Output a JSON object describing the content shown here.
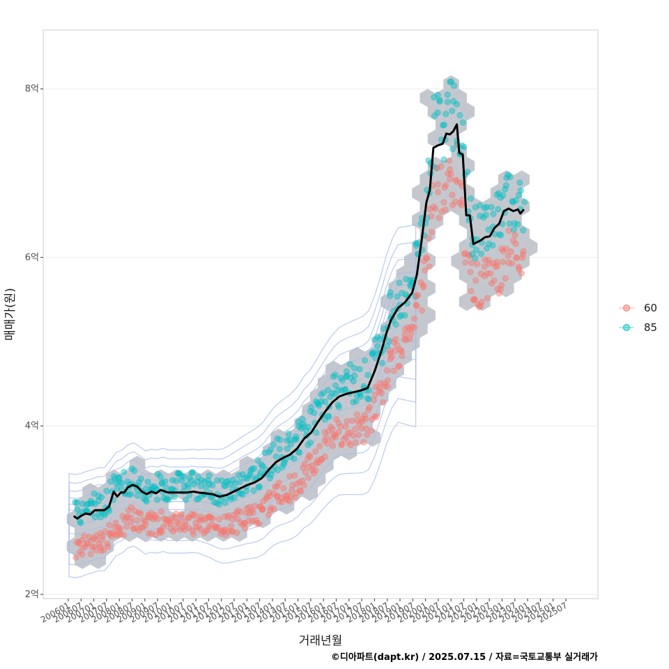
{
  "chart_data": {
    "type": "scatter",
    "xlabel": "거래년월",
    "ylabel": "매매가(원)",
    "caption": "©디아파트(dapt.kr) / 2025.07.15 / 자료=국토교통부 실거래가",
    "x_ticks": [
      "200601",
      "200607",
      "200701",
      "200707",
      "200801",
      "200807",
      "200901",
      "200907",
      "201001",
      "201007",
      "201101",
      "201107",
      "201201",
      "201207",
      "201301",
      "201307",
      "201401",
      "201407",
      "201501",
      "201507",
      "201601",
      "201607",
      "201701",
      "201707",
      "201801",
      "201807",
      "201901",
      "201907",
      "202001",
      "202007",
      "202101",
      "202107",
      "202201",
      "202207",
      "202301",
      "202307",
      "202401",
      "202407",
      "202501",
      "202507"
    ],
    "y_ticks": [
      {
        "value": 2,
        "label": "2억"
      },
      {
        "value": 4,
        "label": "4억"
      },
      {
        "value": 6,
        "label": "6억"
      },
      {
        "value": 8,
        "label": "8억"
      }
    ],
    "ylim": [
      1.95,
      8.7
    ],
    "xlim": [
      2005.4,
      2029.0
    ],
    "grid": "horizontal",
    "legend": {
      "position": "right",
      "entries": [
        {
          "name": "60",
          "color": "#F8766D"
        },
        {
          "name": "85",
          "color": "#00BFC4"
        }
      ]
    },
    "trend_line": {
      "color": "#000000",
      "points": [
        [
          2006.7,
          2.93
        ],
        [
          2006.85,
          2.9
        ],
        [
          2007.0,
          2.93
        ],
        [
          2007.2,
          2.96
        ],
        [
          2007.4,
          2.95
        ],
        [
          2007.6,
          3.0
        ],
        [
          2007.8,
          3.0
        ],
        [
          2008.0,
          3.0
        ],
        [
          2008.2,
          3.04
        ],
        [
          2008.4,
          3.22
        ],
        [
          2008.55,
          3.16
        ],
        [
          2008.7,
          3.21
        ],
        [
          2008.85,
          3.21
        ],
        [
          2009.0,
          3.27
        ],
        [
          2009.2,
          3.3
        ],
        [
          2009.4,
          3.28
        ],
        [
          2009.6,
          3.22
        ],
        [
          2009.8,
          3.19
        ],
        [
          2010.0,
          3.22
        ],
        [
          2010.2,
          3.2
        ],
        [
          2010.4,
          3.24
        ],
        [
          2010.7,
          3.21
        ],
        [
          2011.0,
          3.21
        ],
        [
          2011.5,
          3.21
        ],
        [
          2011.8,
          3.22
        ],
        [
          2012.0,
          3.21
        ],
        [
          2012.3,
          3.2
        ],
        [
          2012.6,
          3.19
        ],
        [
          2012.9,
          3.16
        ],
        [
          2013.2,
          3.18
        ],
        [
          2013.5,
          3.22
        ],
        [
          2013.8,
          3.26
        ],
        [
          2014.1,
          3.3
        ],
        [
          2014.4,
          3.33
        ],
        [
          2014.7,
          3.38
        ],
        [
          2015.0,
          3.48
        ],
        [
          2015.3,
          3.57
        ],
        [
          2015.6,
          3.62
        ],
        [
          2015.9,
          3.66
        ],
        [
          2016.2,
          3.73
        ],
        [
          2016.5,
          3.85
        ],
        [
          2016.8,
          3.92
        ],
        [
          2017.1,
          4.05
        ],
        [
          2017.4,
          4.17
        ],
        [
          2017.7,
          4.28
        ],
        [
          2018.0,
          4.35
        ],
        [
          2018.3,
          4.38
        ],
        [
          2018.6,
          4.4
        ],
        [
          2018.9,
          4.42
        ],
        [
          2019.2,
          4.45
        ],
        [
          2019.5,
          4.65
        ],
        [
          2019.8,
          4.9
        ],
        [
          2020.0,
          5.1
        ],
        [
          2020.2,
          5.26
        ],
        [
          2020.5,
          5.4
        ],
        [
          2020.8,
          5.47
        ],
        [
          2021.1,
          5.58
        ],
        [
          2021.3,
          5.8
        ],
        [
          2021.5,
          6.2
        ],
        [
          2021.7,
          6.65
        ],
        [
          2021.85,
          6.8
        ],
        [
          2022.0,
          7.3
        ],
        [
          2022.2,
          7.33
        ],
        [
          2022.4,
          7.35
        ],
        [
          2022.55,
          7.47
        ],
        [
          2022.7,
          7.46
        ],
        [
          2022.85,
          7.5
        ],
        [
          2023.0,
          7.58
        ],
        [
          2023.1,
          7.24
        ],
        [
          2023.25,
          7.22
        ],
        [
          2023.4,
          6.5
        ],
        [
          2023.55,
          6.5
        ],
        [
          2023.7,
          6.16
        ],
        [
          2023.85,
          6.18
        ],
        [
          2024.0,
          6.2
        ],
        [
          2024.2,
          6.24
        ],
        [
          2024.4,
          6.25
        ],
        [
          2024.6,
          6.35
        ],
        [
          2024.8,
          6.4
        ],
        [
          2025.0,
          6.55
        ],
        [
          2025.2,
          6.58
        ],
        [
          2025.4,
          6.55
        ],
        [
          2025.6,
          6.57
        ],
        [
          2025.7,
          6.52
        ],
        [
          2025.85,
          6.57
        ]
      ]
    }
  }
}
